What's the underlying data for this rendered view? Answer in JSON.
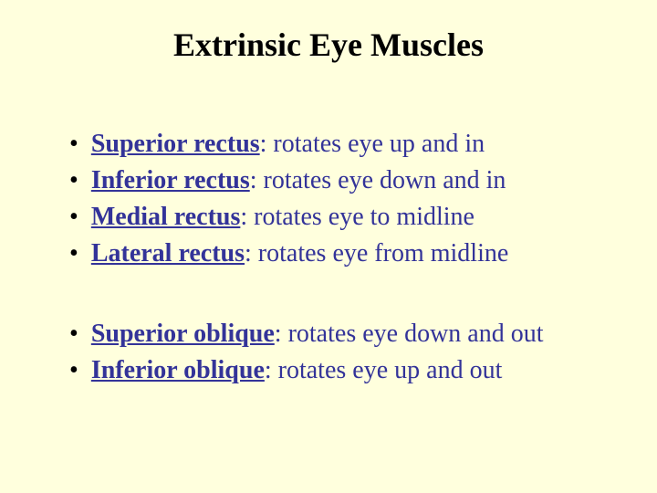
{
  "slide": {
    "background_color": "#ffffdd",
    "title": {
      "text": "Extrinsic Eye Muscles",
      "fontsize": 36,
      "color": "#000000",
      "weight": "bold"
    },
    "bullet_style": {
      "marker": "•",
      "marker_color": "#000000",
      "marker_fontsize": 28,
      "text_color": "#333399",
      "fontsize": 28,
      "name_underline": true
    },
    "group1": [
      {
        "name": "Superior rectus",
        "desc": ": rotates eye up and in"
      },
      {
        "name": "Inferior rectus",
        "desc": ": rotates eye down and in"
      },
      {
        "name": "Medial rectus",
        "desc": ": rotates eye to midline"
      },
      {
        "name": "Lateral rectus",
        "desc": ": rotates eye from midline"
      }
    ],
    "group2": [
      {
        "name": "Superior oblique",
        "desc": ": rotates eye down and out"
      },
      {
        "name": "Inferior oblique",
        "desc": ": rotates eye up and out"
      }
    ]
  }
}
